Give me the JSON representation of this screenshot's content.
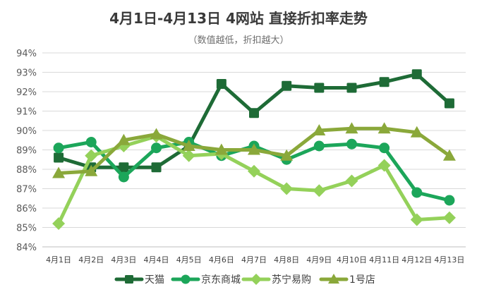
{
  "chart_data": {
    "type": "line",
    "title": "4月1日-4月13日 4网站 直接折扣率走势",
    "subtitle": "（数值越低，折扣越大）",
    "categories": [
      "4月1日",
      "4月2日",
      "4月3日",
      "4月4日",
      "4月5日",
      "4月6日",
      "4月7日",
      "4月8日",
      "4月9日",
      "4月10日",
      "4月11日",
      "4月12日",
      "4月13日"
    ],
    "ylim": [
      84,
      94
    ],
    "yticks": [
      "84%",
      "85%",
      "86%",
      "87%",
      "88%",
      "89%",
      "90%",
      "91%",
      "92%",
      "93%",
      "94%"
    ],
    "grid": true,
    "legend_position": "bottom",
    "series": [
      {
        "name": "天猫",
        "marker": "square",
        "color": "#1e6b36",
        "values": [
          88.6,
          88.1,
          88.1,
          88.1,
          89.2,
          92.4,
          90.9,
          92.3,
          92.2,
          92.2,
          92.5,
          92.9,
          91.4
        ]
      },
      {
        "name": "京东商城",
        "marker": "circle",
        "color": "#1ca65a",
        "values": [
          89.1,
          89.4,
          87.6,
          89.1,
          89.4,
          88.7,
          89.2,
          88.5,
          89.2,
          89.3,
          89.1,
          86.8,
          86.4
        ]
      },
      {
        "name": "苏宁易购",
        "marker": "diamond",
        "color": "#94d15a",
        "values": [
          85.2,
          88.7,
          89.2,
          89.7,
          88.7,
          88.8,
          87.9,
          87.0,
          86.9,
          87.4,
          88.2,
          85.4,
          85.5
        ]
      },
      {
        "name": "1号店",
        "marker": "triangle",
        "color": "#8aa83a",
        "values": [
          87.8,
          87.9,
          89.5,
          89.8,
          89.2,
          89.0,
          89.0,
          88.7,
          90.0,
          90.1,
          90.1,
          89.9,
          88.7
        ]
      }
    ]
  }
}
